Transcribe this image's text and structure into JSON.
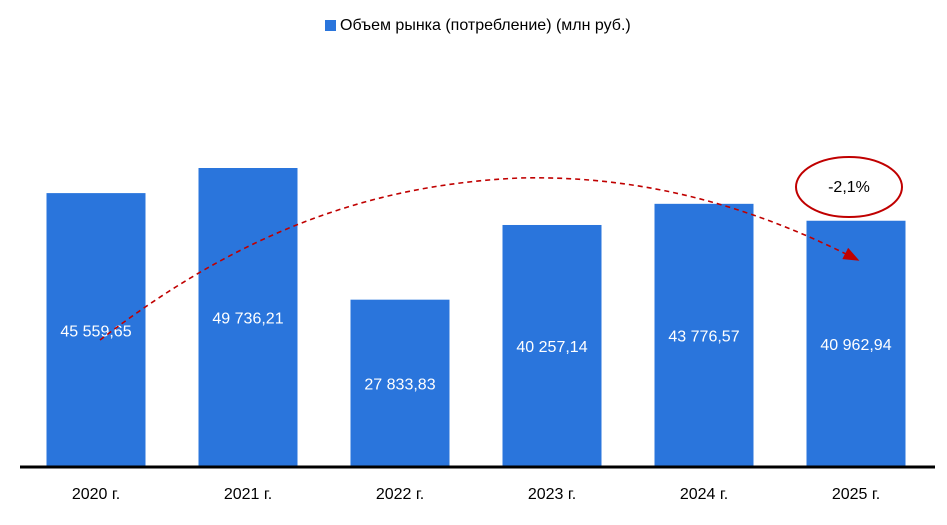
{
  "chart_data": {
    "type": "bar",
    "categories": [
      "2020 г.",
      "2021 г.",
      "2022 г.",
      "2023 г.",
      "2024 г.",
      "2025 г."
    ],
    "series": [
      {
        "name": "Объем рынка (потребление) (млн руб.)",
        "color": "#2a75dc",
        "values": [
          45559.65,
          49736.21,
          27833.83,
          40257.14,
          43776.57,
          40962.94
        ],
        "value_labels": [
          "45 559,65",
          "49 736,21",
          "27 833,83",
          "40 257,14",
          "43 776,57",
          "40 962,94"
        ]
      }
    ],
    "legend": "top",
    "annotations": [
      "-2,1%"
    ]
  }
}
